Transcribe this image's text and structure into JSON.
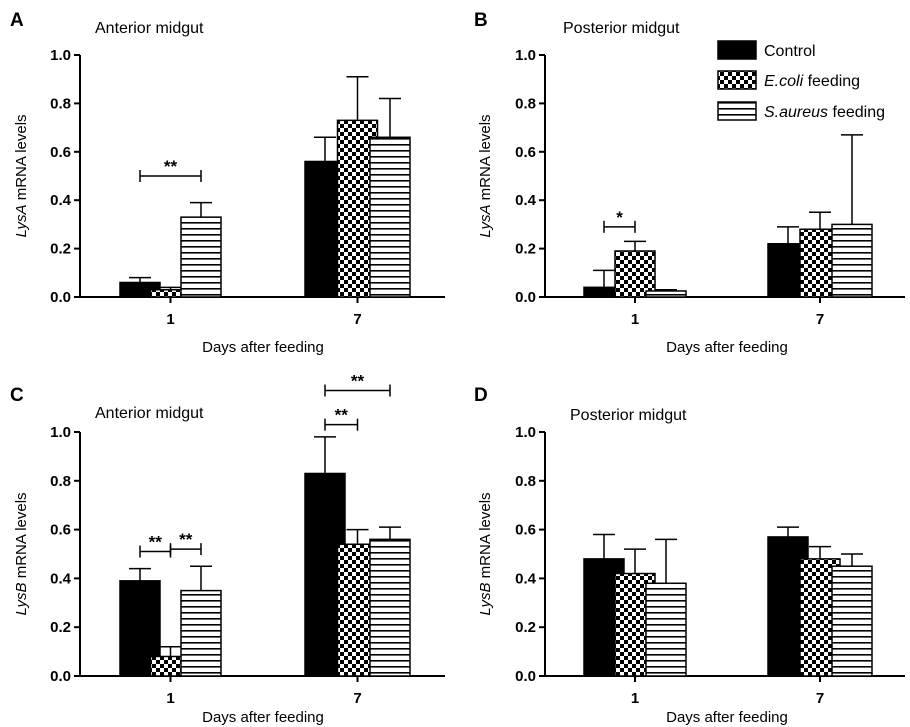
{
  "legend": [
    {
      "label_plain": "Control",
      "label_italic": ""
    },
    {
      "label_plain": " feeding",
      "label_italic": "E.coli"
    },
    {
      "label_plain": " feeding",
      "label_italic": "S.aureus"
    }
  ],
  "chart_data": [
    {
      "type": "bar",
      "panel": "A",
      "title": "Anterior midgut",
      "ylabel_italic": "LysA",
      "ylabel_plain": " mRNA levels",
      "xlabel": "Days after feeding",
      "ylim": [
        0,
        1.0
      ],
      "yticks": [
        "0.0",
        "0.2",
        "0.4",
        "0.6",
        "0.8",
        "1.0"
      ],
      "categories": [
        "1",
        "7"
      ],
      "series": [
        {
          "values": [
            0.06,
            0.56
          ],
          "errors": [
            0.02,
            0.1
          ]
        },
        {
          "values": [
            0.03,
            0.73
          ],
          "errors": [
            0.01,
            0.18
          ]
        },
        {
          "values": [
            0.33,
            0.66
          ],
          "errors": [
            0.06,
            0.16
          ]
        }
      ],
      "significance": [
        {
          "category": 0,
          "from": 0,
          "to": 2,
          "label": "**",
          "y": 0.5
        }
      ]
    },
    {
      "type": "bar",
      "panel": "B",
      "title": "Posterior midgut",
      "ylabel_italic": "LysA",
      "ylabel_plain": " mRNA levels",
      "xlabel": "Days after feeding",
      "ylim": [
        0,
        1.0
      ],
      "yticks": [
        "0.0",
        "0.2",
        "0.4",
        "0.6",
        "0.8",
        "1.0"
      ],
      "categories": [
        "1",
        "7"
      ],
      "series": [
        {
          "values": [
            0.04,
            0.22
          ],
          "errors": [
            0.07,
            0.07
          ]
        },
        {
          "values": [
            0.19,
            0.28
          ],
          "errors": [
            0.04,
            0.07
          ]
        },
        {
          "values": [
            0.025,
            0.3
          ],
          "errors": [
            0.005,
            0.37
          ]
        }
      ],
      "significance": [
        {
          "category": 0,
          "from": 0,
          "to": 1,
          "label": "*",
          "y": 0.29
        }
      ]
    },
    {
      "type": "bar",
      "panel": "C",
      "title": "Anterior midgut",
      "ylabel_italic": "LysB",
      "ylabel_plain": " mRNA levels",
      "xlabel": "Days after feeding",
      "ylim": [
        0,
        1.0
      ],
      "yticks": [
        "0.0",
        "0.2",
        "0.4",
        "0.6",
        "0.8",
        "1.0"
      ],
      "categories": [
        "1",
        "7"
      ],
      "series": [
        {
          "values": [
            0.39,
            0.83
          ],
          "errors": [
            0.05,
            0.15
          ]
        },
        {
          "values": [
            0.08,
            0.54
          ],
          "errors": [
            0.04,
            0.06
          ]
        },
        {
          "values": [
            0.35,
            0.56
          ],
          "errors": [
            0.1,
            0.05
          ]
        }
      ],
      "significance": [
        {
          "category": 0,
          "from": 0,
          "to": 1,
          "label": "**",
          "y": 0.51
        },
        {
          "category": 0,
          "from": 1,
          "to": 2,
          "label": "**",
          "y": 0.52
        },
        {
          "category": 1,
          "from": 0,
          "to": 1,
          "label": "**",
          "y": 1.03
        },
        {
          "category": 1,
          "from": 0,
          "to": 2,
          "label": "**",
          "y": 1.17
        }
      ]
    },
    {
      "type": "bar",
      "panel": "D",
      "title": "Posterior midgut",
      "ylabel_italic": "LysB",
      "ylabel_plain": " mRNA levels",
      "xlabel": "Days after feeding",
      "ylim": [
        0,
        1.0
      ],
      "yticks": [
        "0.0",
        "0.2",
        "0.4",
        "0.6",
        "0.8",
        "1.0"
      ],
      "categories": [
        "1",
        "7"
      ],
      "series": [
        {
          "values": [
            0.48,
            0.57
          ],
          "errors": [
            0.1,
            0.04
          ]
        },
        {
          "values": [
            0.42,
            0.48
          ],
          "errors": [
            0.1,
            0.05
          ]
        },
        {
          "values": [
            0.38,
            0.45
          ],
          "errors": [
            0.18,
            0.05
          ]
        }
      ],
      "significance": []
    }
  ]
}
